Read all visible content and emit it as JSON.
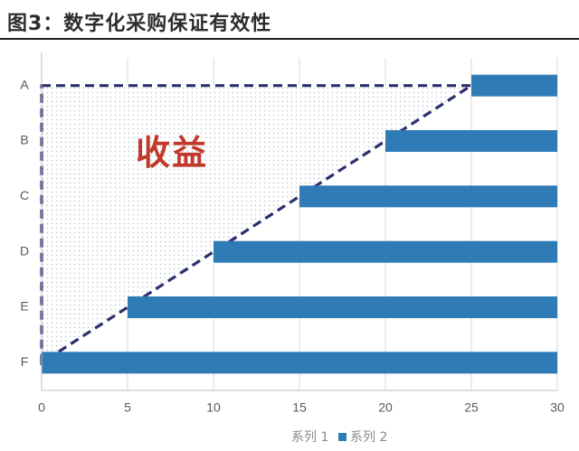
{
  "figure": {
    "title": "图3：数字化采购保证有效性"
  },
  "chart_data": {
    "type": "bar",
    "orientation": "horizontal",
    "stacked": true,
    "categories": [
      "A",
      "B",
      "C",
      "D",
      "E",
      "F"
    ],
    "series": [
      {
        "name": "系列 1",
        "values": [
          25,
          20,
          15,
          10,
          5,
          0
        ],
        "color": "transparent"
      },
      {
        "name": "系列 2",
        "values": [
          5,
          10,
          15,
          20,
          25,
          30
        ],
        "color": "#2e7bb6"
      }
    ],
    "xlim": [
      0,
      30
    ],
    "xticks": [
      0,
      5,
      10,
      15,
      20,
      25,
      30
    ],
    "grid": "vertical",
    "legend": {
      "placement": "bottom",
      "entries": [
        "系列 1",
        "系列 2"
      ]
    },
    "annotations": [
      {
        "text": "收益",
        "color": "#c0392b"
      }
    ],
    "overlay": {
      "shape": "dashed-triangle",
      "vertices_data": [
        [
          0,
          "A"
        ],
        [
          25,
          "A"
        ],
        [
          0,
          "F"
        ]
      ],
      "fill": "dotted",
      "line_color": "#2b2f6e"
    }
  }
}
